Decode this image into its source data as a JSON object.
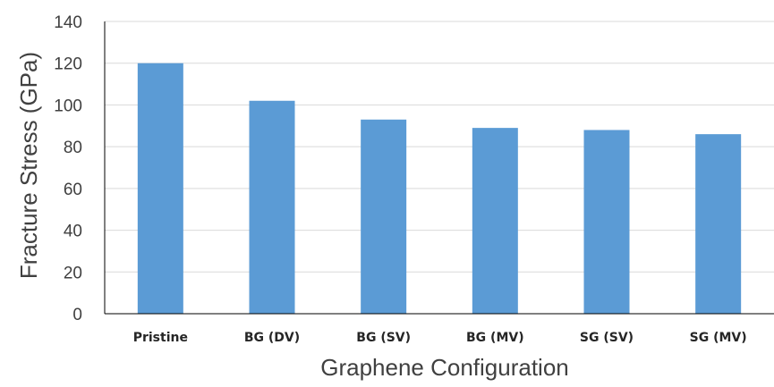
{
  "chart_data": {
    "type": "bar",
    "title": "",
    "xlabel": "Graphene Configuration",
    "ylabel": "Fracture Stress (GPa)",
    "ylim": [
      0,
      140
    ],
    "yticks": [
      0,
      20,
      40,
      60,
      80,
      100,
      120,
      140
    ],
    "grid": true,
    "legend": "none",
    "categories": [
      "Pristine",
      "BG (DV)",
      "BG (SV)",
      "BG (MV)",
      "SG (SV)",
      "SG (MV)"
    ],
    "values": [
      120,
      102,
      93,
      89,
      88,
      86
    ],
    "bar_color": "#5b9bd5",
    "grid_color": "#d9d9d9",
    "axis_color": "#000000"
  }
}
